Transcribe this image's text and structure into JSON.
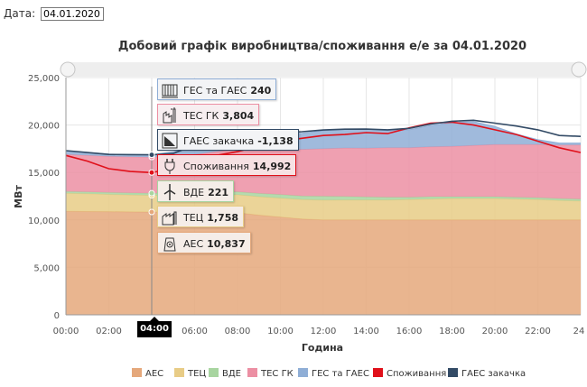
{
  "header": {
    "date_label": "Дата:",
    "date_value": "04.01.2020"
  },
  "chart_data": {
    "type": "area",
    "title": "Добовий графік виробництва/споживання е/е за 04.01.2020",
    "xlabel": "Година",
    "ylabel": "МВт",
    "ylim": [
      0,
      25000
    ],
    "yticks": [
      "0",
      "5,000",
      "10,000",
      "15,000",
      "20,000",
      "25,000"
    ],
    "xticks": [
      "00:00",
      "02:00",
      "04:00",
      "06:00",
      "08:00",
      "10:00",
      "12:00",
      "14:00",
      "16:00",
      "18:00",
      "20:00",
      "22:00",
      "24"
    ],
    "xlim": [
      0,
      24
    ],
    "legend_position": "bottom",
    "x": [
      0,
      1,
      2,
      3,
      4,
      5,
      6,
      7,
      8,
      9,
      10,
      11,
      12,
      13,
      14,
      15,
      16,
      17,
      18,
      19,
      20,
      21,
      22,
      23,
      24
    ],
    "stacked_series": [
      {
        "name": "АЕС",
        "color": "#e5a87b",
        "values": [
          10900,
          10880,
          10870,
          10850,
          10837,
          10840,
          10820,
          10800,
          10750,
          10500,
          10300,
          10100,
          10000,
          10000,
          10000,
          10000,
          10000,
          10000,
          10000,
          10000,
          10000,
          10000,
          10000,
          10000,
          10000
        ]
      },
      {
        "name": "ТЕЦ",
        "color": "#e8cc86",
        "values": [
          1900,
          1880,
          1820,
          1780,
          1758,
          1770,
          1800,
          1850,
          1900,
          1950,
          2000,
          2050,
          2080,
          2100,
          2100,
          2100,
          2150,
          2200,
          2250,
          2250,
          2250,
          2200,
          2150,
          2050,
          2000
        ]
      },
      {
        "name": "ВДЕ",
        "color": "#a8d5a0",
        "values": [
          200,
          200,
          200,
          210,
          221,
          230,
          260,
          300,
          320,
          340,
          380,
          380,
          420,
          380,
          320,
          300,
          250,
          250,
          200,
          200,
          200,
          200,
          200,
          200,
          200
        ]
      },
      {
        "name": "ТЕС ГК",
        "color": "#ec8fa3",
        "values": [
          3900,
          3850,
          3800,
          3800,
          3804,
          3850,
          4000,
          4250,
          4500,
          4700,
          4800,
          4900,
          5000,
          5100,
          5150,
          5200,
          5200,
          5250,
          5300,
          5400,
          5500,
          5550,
          5600,
          5650,
          5700
        ]
      },
      {
        "name": "ГЕС та ГАЕС",
        "color": "#8faed6",
        "values": [
          400,
          300,
          250,
          240,
          240,
          500,
          800,
          1000,
          1300,
          1400,
          1500,
          1700,
          1900,
          1950,
          2000,
          1800,
          1900,
          2250,
          2500,
          2500,
          1900,
          1100,
          500,
          200,
          200
        ]
      }
    ],
    "line_series": [
      {
        "name": "Споживання",
        "color": "#e0101a",
        "values": [
          16800,
          16200,
          15400,
          15100,
          14992,
          15400,
          16100,
          16800,
          17200,
          17800,
          18300,
          18600,
          18900,
          19000,
          19200,
          19100,
          19700,
          20200,
          20300,
          20000,
          19500,
          19000,
          18300,
          17600,
          17100
        ]
      },
      {
        "name": "ГАЕС закачка",
        "color": "#334b66",
        "values": [
          17300,
          17100,
          16900,
          16880,
          16862,
          17000,
          17900,
          18200,
          18750,
          19000,
          19180,
          19300,
          19480,
          19560,
          19570,
          19500,
          19650,
          20100,
          20400,
          20500,
          20200,
          19900,
          19500,
          18900,
          18800
        ]
      }
    ],
    "cursor": {
      "x": 4,
      "label": "04:00"
    },
    "tooltips": [
      {
        "series": "ГЕС та ГАЕС",
        "value": "240",
        "icon": "dam-icon",
        "bg": "#f3f4f6",
        "border": "#8faed6"
      },
      {
        "series": "ТЕС ГК",
        "value": "3,804",
        "icon": "power-plant-icon",
        "bg": "#f7eef0",
        "border": "#ec8fa3"
      },
      {
        "series": "ГАЕС закачка",
        "value": "-1,138",
        "icon": "pump-storage-icon",
        "bg": "#f3f4f6",
        "border": "#334b66"
      },
      {
        "series": "Споживання",
        "value": "14,992",
        "icon": "plug-icon",
        "bg": "#f6e1e3",
        "border": "#e0101a"
      },
      {
        "series": "ВДЕ",
        "value": "221",
        "icon": "wind-turbine-icon",
        "bg": "#f5ede8",
        "border": "#a8d5a0"
      },
      {
        "series": "ТЕЦ",
        "value": "1,758",
        "icon": "chp-plant-icon",
        "bg": "#f5ede8",
        "border": "#e8cc86"
      },
      {
        "series": "АЕС",
        "value": "10,837",
        "icon": "nuclear-icon",
        "bg": "#f5ede8",
        "border": "#e5a87b"
      }
    ]
  }
}
